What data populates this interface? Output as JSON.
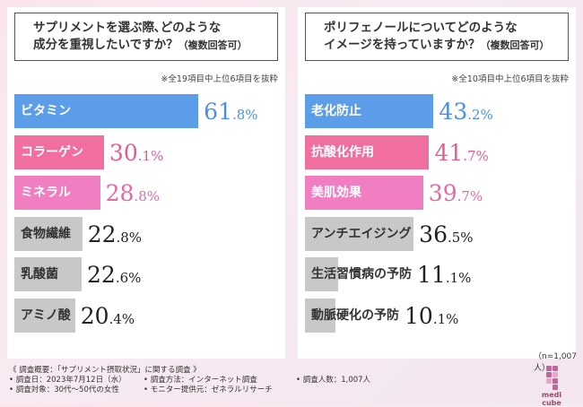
{
  "chart_data": [
    {
      "type": "bar",
      "title": "サプリメントを選ぶ際､どのような\n成分を重視したいですか？",
      "title_suffix": "（複数回答可）",
      "note": "※全19項目中上位6項目を抜粋",
      "unit": "%",
      "categories": [
        "ビタミン",
        "コラーゲン",
        "ミネラル",
        "食物繊維",
        "乳酸菌",
        "アミノ酸"
      ],
      "values": [
        61.8,
        30.1,
        28.8,
        22.8,
        22.6,
        20.4
      ],
      "colors": [
        "#5b9de8",
        "#f06ea0",
        "#f07ec0",
        "#c8c8c8",
        "#c8c8c8",
        "#c8c8c8"
      ],
      "value_colors": [
        "#4a90e2",
        "#e85a92",
        "#e36aa8",
        "#222222",
        "#222222",
        "#222222"
      ],
      "label_colors": [
        "#ffffff",
        "#ffffff",
        "#ffffff",
        "#333333",
        "#333333",
        "#333333"
      ]
    },
    {
      "type": "bar",
      "title": "ポリフェノールについてどのような\nイメージを持っていますか？",
      "title_suffix": "（複数回答可）",
      "note": "※全10項目中上位6項目を抜粋",
      "unit": "%",
      "categories": [
        "老化防止",
        "抗酸化作用",
        "美肌効果",
        "アンチエイジング",
        "生活習慣病の予防",
        "動脈硬化の予防"
      ],
      "values": [
        43.2,
        41.7,
        39.7,
        36.5,
        11.1,
        10.1
      ],
      "colors": [
        "#5b9de8",
        "#f06ea0",
        "#f07ec0",
        "#c8c8c8",
        "#c8c8c8",
        "#c8c8c8"
      ],
      "value_colors": [
        "#4a90e2",
        "#e85a92",
        "#e36aa8",
        "#222222",
        "#222222",
        "#222222"
      ],
      "label_colors": [
        "#ffffff",
        "#ffffff",
        "#ffffff",
        "#333333",
        "#333333",
        "#333333"
      ]
    }
  ],
  "sample_size": "（n=1,007人）",
  "footer": {
    "summary": "《 調査概要：「サプリメント摂取状況」に関する調査 》",
    "date": "• 調査日：2023年7月12日（水）",
    "target": "• 調査対象：30代～50代の女性",
    "method": "• 調査方法：インターネット調査",
    "provider": "• モニター提供元：ゼネラルリサーチ",
    "people": "• 調査人数：1,007人"
  },
  "logo": {
    "text": "medi cube",
    "icon": "medicube-logo-icon"
  }
}
